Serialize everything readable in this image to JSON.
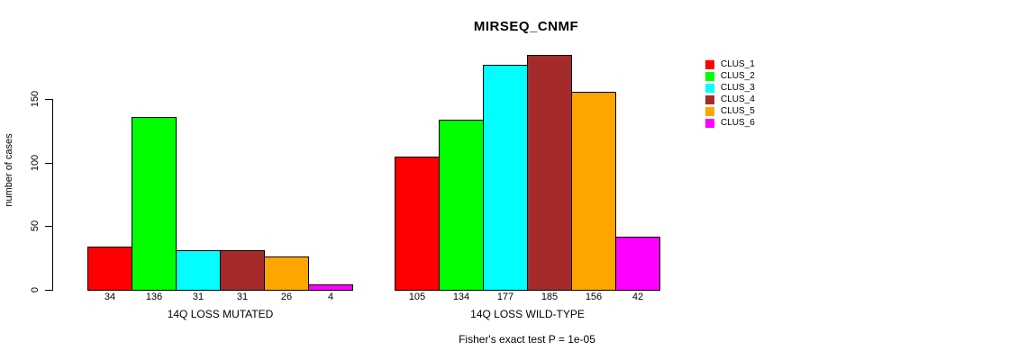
{
  "page": {
    "background": "#FFFFFF"
  },
  "chart_data": {
    "type": "bar",
    "title": "MIRSEQ_CNMF",
    "ylabel": "number of cases",
    "xlabel": "",
    "ylim": [
      0,
      150
    ],
    "yticks": [
      0,
      50,
      100,
      150
    ],
    "grid": false,
    "legend_position": "right-outside",
    "bar_value_labels_shown": true,
    "series": [
      {
        "name": "CLUS_1",
        "color": "#FF0000"
      },
      {
        "name": "CLUS_2",
        "color": "#00FF00"
      },
      {
        "name": "CLUS_3",
        "color": "#00FFFF"
      },
      {
        "name": "CLUS_4",
        "color": "#A52A2A"
      },
      {
        "name": "CLUS_5",
        "color": "#FFA500"
      },
      {
        "name": "CLUS_6",
        "color": "#FF00FF"
      }
    ],
    "groups": [
      {
        "label": "14Q LOSS MUTATED",
        "values": [
          34,
          136,
          31,
          31,
          26,
          4
        ]
      },
      {
        "label": "14Q LOSS WILD-TYPE",
        "values": [
          105,
          134,
          177,
          185,
          156,
          42
        ]
      }
    ],
    "annotation": "Fisher's exact test P = 1e-05"
  }
}
